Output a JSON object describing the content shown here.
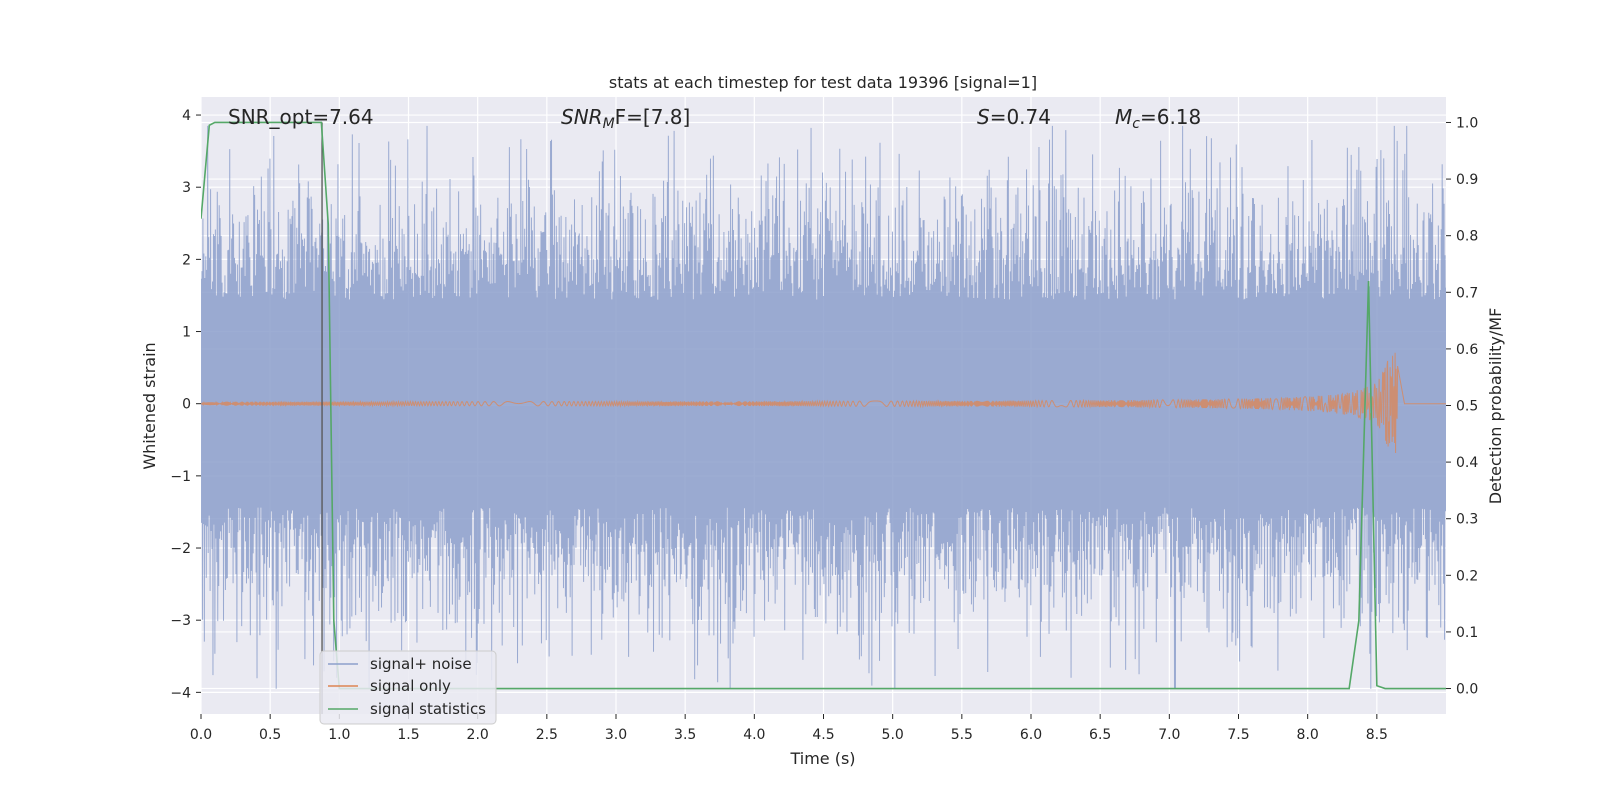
{
  "chart_data": {
    "type": "line",
    "title": "stats at each timestep for test data 19396 [signal=1]",
    "xlabel": "Time (s)",
    "ylabel": "Whitened strain",
    "y2label": "Detection probability/MF",
    "xlim": [
      0.0,
      9.0
    ],
    "ylim": [
      -4.3,
      4.25
    ],
    "y2lim": [
      -0.045,
      1.045
    ],
    "x_ticks": [
      0.0,
      0.5,
      1.0,
      1.5,
      2.0,
      2.5,
      3.0,
      3.5,
      4.0,
      4.5,
      5.0,
      5.5,
      6.0,
      6.5,
      7.0,
      7.5,
      8.0,
      8.5
    ],
    "x_tick_labels": [
      "0.0",
      "0.5",
      "1.0",
      "1.5",
      "2.0",
      "2.5",
      "3.0",
      "3.5",
      "4.0",
      "4.5",
      "5.0",
      "5.5",
      "6.0",
      "6.5",
      "7.0",
      "7.5",
      "8.0",
      "8.5"
    ],
    "y_ticks": [
      4,
      3,
      2,
      1,
      0,
      -1,
      -2,
      -3,
      -4
    ],
    "y_tick_labels": [
      "4",
      "3",
      "2",
      "1",
      "0",
      "−1",
      "−2",
      "−3",
      "−4"
    ],
    "y2_ticks": [
      1.0,
      0.9,
      0.8,
      0.7,
      0.6,
      0.5,
      0.4,
      0.3,
      0.2,
      0.1,
      0.0
    ],
    "y2_tick_labels": [
      "1.0",
      "0.9",
      "0.8",
      "0.7",
      "0.6",
      "0.5",
      "0.4",
      "0.3",
      "0.2",
      "0.1",
      "0.0"
    ],
    "grid": true,
    "legend_position": "lower-left",
    "annotations": {
      "snr_opt": "SNR_opt=7.64",
      "snr_mf_base": "SNR",
      "snr_mf_sub": "M",
      "snr_mf_rest": "F=[7.8]",
      "s_base": "S",
      "s_rest": "=0.74",
      "mc_base": "M",
      "mc_sub": "c",
      "mc_rest": "=6.18"
    },
    "vline_x": 0.875,
    "series": [
      {
        "name": "signal+ noise",
        "color": "#8c9fcb",
        "noise_amplitude": 1.6,
        "noise_peak_max": 3.85,
        "noise_peak_min": -3.95
      },
      {
        "name": "signal only",
        "color": "#dd8452",
        "chirp_start_x": 0.0,
        "chirp_end_x": 8.65,
        "chirp_start_amplitude": 0.02,
        "chirp_peak_amplitude": 0.72
      },
      {
        "name": "signal statistics",
        "color": "#55a868",
        "axis": "right",
        "x": [
          0.0,
          0.06,
          0.1,
          0.2,
          0.4,
          0.6,
          0.8,
          0.87,
          0.92,
          0.96,
          1.0,
          1.1,
          2.0,
          3.0,
          4.0,
          5.0,
          6.0,
          7.0,
          8.0,
          8.3,
          8.37,
          8.44,
          8.5,
          8.56,
          9.0
        ],
        "y": [
          0.83,
          0.995,
          1.0,
          1.0,
          1.0,
          1.0,
          1.0,
          1.0,
          0.82,
          0.12,
          0.0,
          0.0,
          0.0,
          0.0,
          0.0,
          0.0,
          0.0,
          0.0,
          0.0,
          0.0,
          0.12,
          0.72,
          0.005,
          0.0,
          0.0
        ]
      }
    ]
  }
}
